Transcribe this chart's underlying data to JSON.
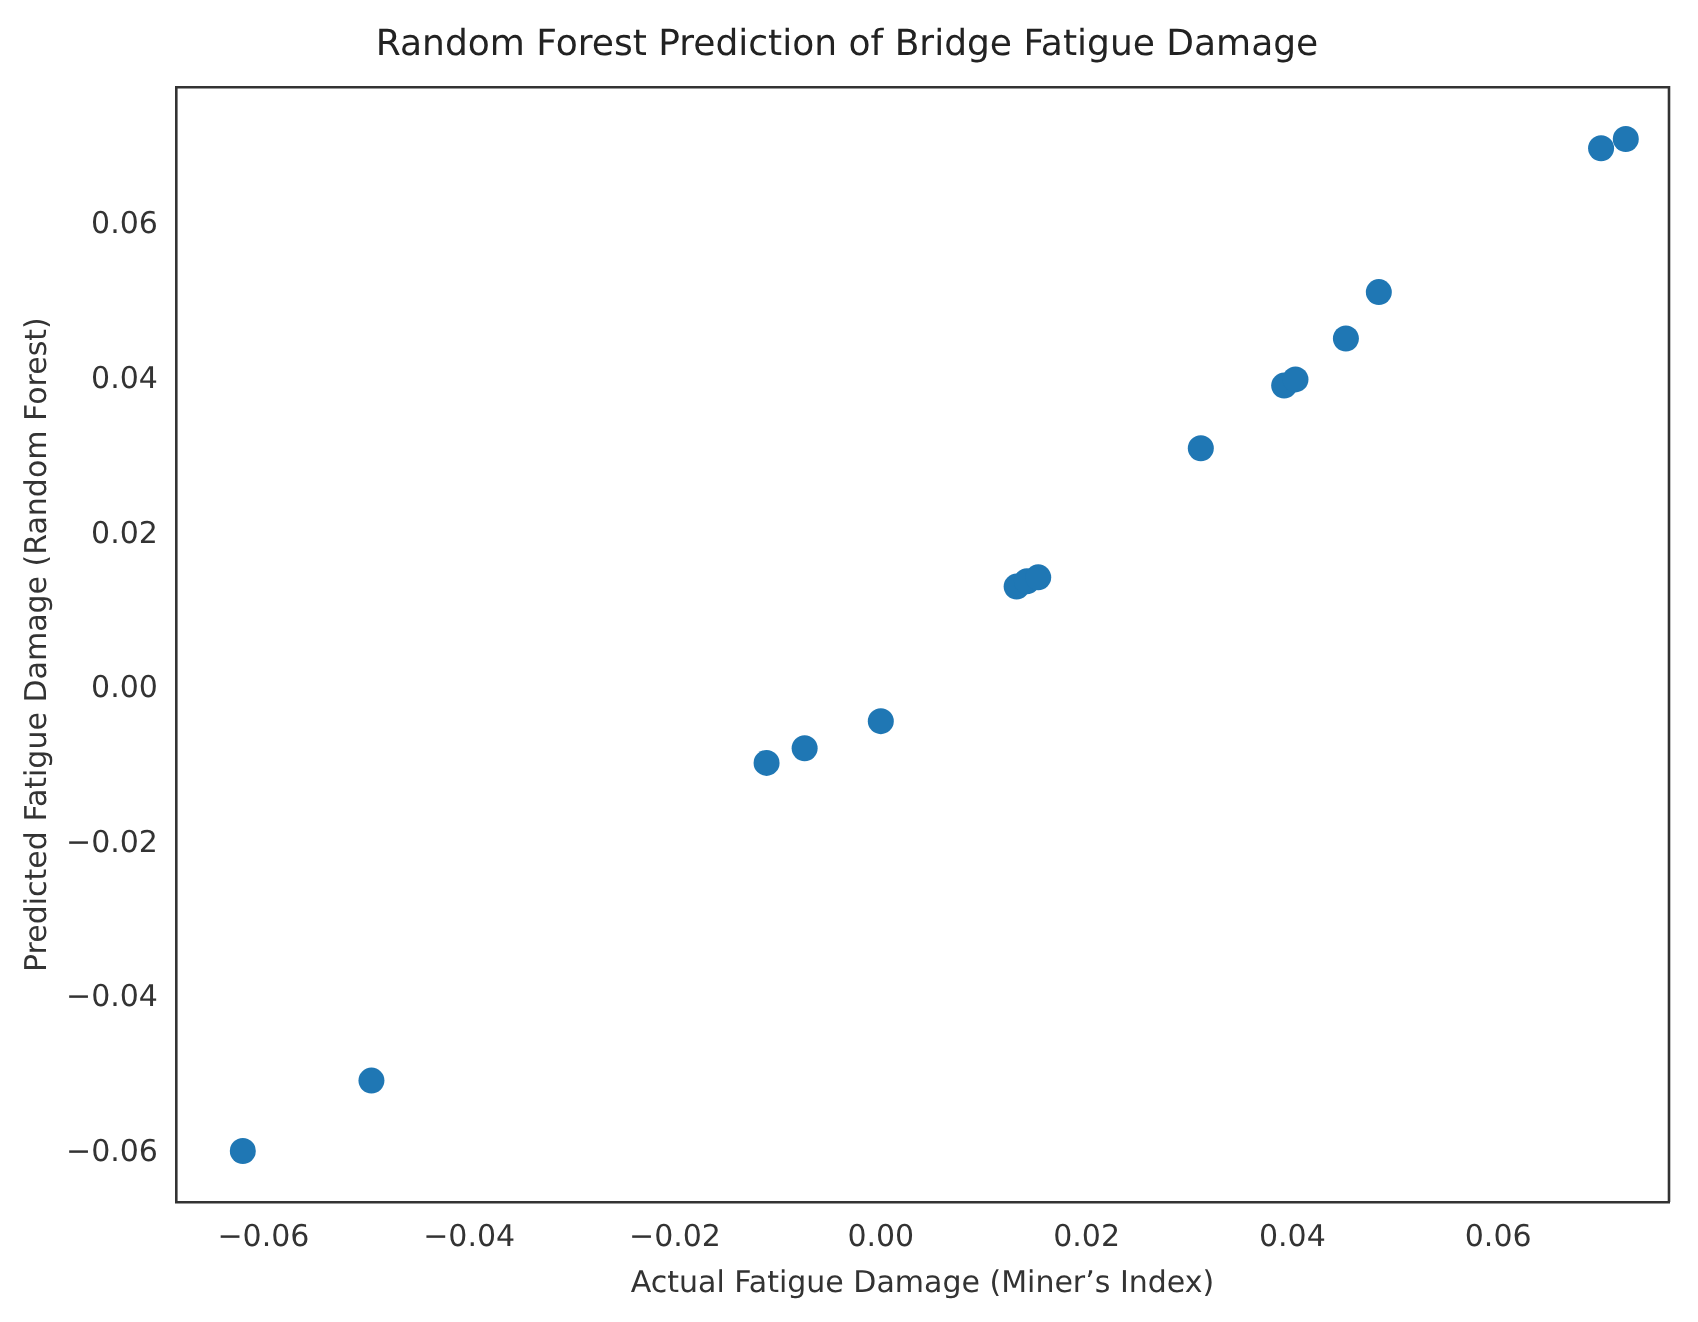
{
  "chart_data": {
    "type": "scatter",
    "title": "Random Forest Prediction of Bridge Fatigue Damage",
    "xlabel": "Actual Fatigue Damage (Miner’s Index)",
    "ylabel": "Predicted Fatigue Damage (Random Forest)",
    "series": [
      {
        "color": "#1f77b4",
        "x": [
          -0.062,
          -0.0495,
          -0.0111,
          -0.0074,
          0.0,
          0.0132,
          0.0142,
          0.0153,
          0.0311,
          0.0392,
          0.0403,
          0.0452,
          0.0484,
          0.07,
          0.0724
        ],
        "values": [
          -0.0597,
          -0.0506,
          -0.0095,
          -0.0076,
          -0.0041,
          0.0133,
          0.014,
          0.0145,
          0.0312,
          0.0393,
          0.0401,
          0.0454,
          0.0514,
          0.07,
          0.0712
        ]
      }
    ],
    "xlim": [
      -0.0685,
      0.0766
    ],
    "xticks": [
      {
        "value": -0.06,
        "label": "−0.06"
      },
      {
        "value": -0.04,
        "label": "−0.04"
      },
      {
        "value": -0.02,
        "label": "−0.02"
      },
      {
        "value": 0,
        "label": "0.00"
      },
      {
        "value": 0.02,
        "label": "0.02"
      },
      {
        "value": 0.04,
        "label": "0.04"
      },
      {
        "value": 0.06,
        "label": "0.06"
      }
    ],
    "ylim": [
      -0.0663,
      0.0779
    ],
    "yticks": [
      {
        "value": -0.06,
        "label": "−0.06"
      },
      {
        "value": -0.04,
        "label": "−0.04"
      },
      {
        "value": -0.02,
        "label": "−0.02"
      },
      {
        "value": 0,
        "label": "0.00"
      },
      {
        "value": 0.02,
        "label": "0.02"
      },
      {
        "value": 0.04,
        "label": "0.04"
      },
      {
        "value": 0.06,
        "label": "0.06"
      }
    ],
    "marker": "circle",
    "grid": false,
    "legend": false
  }
}
